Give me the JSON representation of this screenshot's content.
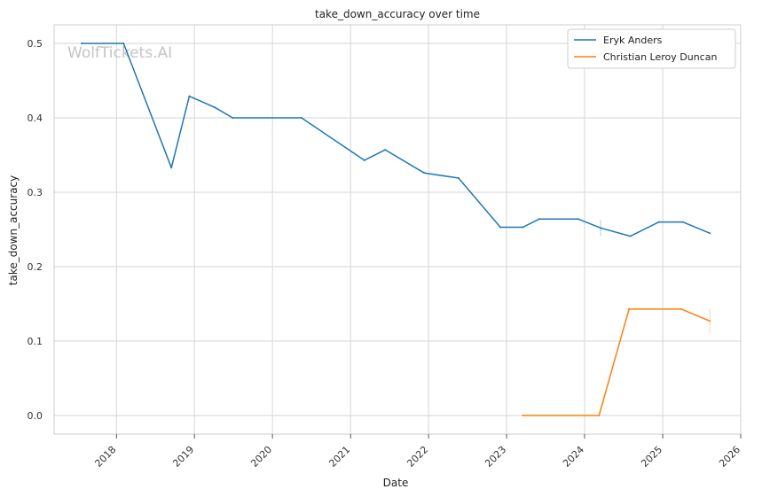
{
  "chart_data": {
    "type": "line",
    "title": "take_down_accuracy over time",
    "xlabel": "Date",
    "ylabel": "take_down_accuracy",
    "watermark": "WolfTickets.AI",
    "x_ticks": [
      "2018",
      "2019",
      "2020",
      "2021",
      "2022",
      "2023",
      "2024",
      "2025",
      "2026"
    ],
    "y_ticks": [
      "0.0",
      "0.1",
      "0.2",
      "0.3",
      "0.4",
      "0.5"
    ],
    "ylim": [
      -0.025,
      0.525
    ],
    "xlim": [
      "2017-03-15",
      "2026-01-01"
    ],
    "grid": true,
    "legend_position": "top-right",
    "series": [
      {
        "name": "Eryk Anders",
        "color": "#1f77b4",
        "points": [
          {
            "x": "2017-07-22",
            "y": 0.5
          },
          {
            "x": "2018-02-03",
            "y": 0.5
          },
          {
            "x": "2018-09-15",
            "y": 0.333
          },
          {
            "x": "2018-12-08",
            "y": 0.429
          },
          {
            "x": "2019-04-06",
            "y": 0.414
          },
          {
            "x": "2019-06-29",
            "y": 0.4
          },
          {
            "x": "2020-05-16",
            "y": 0.4
          },
          {
            "x": "2021-03-06",
            "y": 0.343
          },
          {
            "x": "2021-06-12",
            "y": 0.357
          },
          {
            "x": "2021-12-11",
            "y": 0.326
          },
          {
            "x": "2022-05-21",
            "y": 0.319
          },
          {
            "x": "2022-12-03",
            "y": 0.253
          },
          {
            "x": "2023-03-18",
            "y": 0.253
          },
          {
            "x": "2023-06-03",
            "y": 0.264
          },
          {
            "x": "2023-12-02",
            "y": 0.264
          },
          {
            "x": "2024-03-16",
            "y": 0.252
          },
          {
            "x": "2024-08-03",
            "y": 0.241
          },
          {
            "x": "2024-12-14",
            "y": 0.26
          },
          {
            "x": "2025-04-05",
            "y": 0.26
          },
          {
            "x": "2025-08-09",
            "y": 0.245
          }
        ],
        "error_bars": [
          {
            "x": "2024-03-16",
            "low": 0.241,
            "high": 0.263
          }
        ]
      },
      {
        "name": "Christian Leroy Duncan",
        "color": "#ff7f0e",
        "points": [
          {
            "x": "2023-03-18",
            "y": 0.0
          },
          {
            "x": "2024-03-09",
            "y": 0.0
          },
          {
            "x": "2024-07-27",
            "y": 0.143
          },
          {
            "x": "2025-03-29",
            "y": 0.143
          },
          {
            "x": "2025-08-09",
            "y": 0.127
          }
        ],
        "error_bars": [
          {
            "x": "2025-08-09",
            "low": 0.11,
            "high": 0.143
          }
        ]
      }
    ]
  }
}
